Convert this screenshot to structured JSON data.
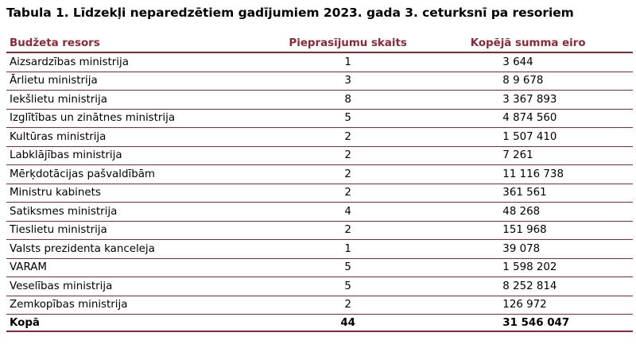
{
  "title": "Tabula 1. Līdzekļi neparedzētiem gadījumiem 2023. gada 3. ceturksnī pa resoriem",
  "colors": {
    "accent": "#8b2a37"
  },
  "table": {
    "headers": [
      "Budžeta resors",
      "Pieprasījumu skaits",
      "Kopējā summa eiro"
    ],
    "rows": [
      {
        "resors": "Aizsardzības ministrija",
        "count": "1",
        "sum": "3 644"
      },
      {
        "resors": "Ārlietu ministrija",
        "count": "3",
        "sum": "8 9 678"
      },
      {
        "resors": "Iekšlietu ministrija",
        "count": "8",
        "sum": "3 367 893"
      },
      {
        "resors": "Izglītības un zinātnes ministrija",
        "count": "5",
        "sum": "4 874 560"
      },
      {
        "resors": "Kultūras ministrija",
        "count": "2",
        "sum": "1 507 410"
      },
      {
        "resors": "Labklājības ministrija",
        "count": "2",
        "sum": "7 261"
      },
      {
        "resors": "Mērķdotācijas pašvaldībām",
        "count": "2",
        "sum": "11 116 738"
      },
      {
        "resors": "Ministru kabinets",
        "count": "2",
        "sum": "361 561"
      },
      {
        "resors": "Satiksmes ministrija",
        "count": "4",
        "sum": "48 268"
      },
      {
        "resors": "Tieslietu ministrija",
        "count": "2",
        "sum": "151 968"
      },
      {
        "resors": "Valsts prezidenta kanceleja",
        "count": "1",
        "sum": "39 078"
      },
      {
        "resors": "VARAM",
        "count": "5",
        "sum": "1 598 202"
      },
      {
        "resors": "Veselības ministrija",
        "count": "5",
        "sum": "8 252 814"
      },
      {
        "resors": "Zemkopības ministrija",
        "count": "2",
        "sum": "126 972"
      }
    ],
    "total": {
      "resors": "Kopā",
      "count": "44",
      "sum": "31 546 047"
    }
  }
}
